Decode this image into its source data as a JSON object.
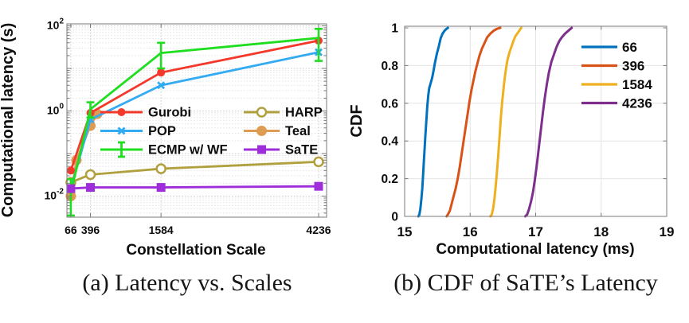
{
  "figure": {
    "captions": {
      "a": "(a) Latency vs. Scales",
      "b": "(b) CDF of SaTE’s Latency"
    }
  },
  "chart_data": [
    {
      "id": "latency-vs-scales",
      "type": "line",
      "title": "",
      "xlabel": "Constellation Scale",
      "ylabel": "Computational latency (s)",
      "x_axis": {
        "scale": "linear",
        "range": [
          0,
          4370
        ],
        "ticks": [
          66,
          396,
          1584,
          4236
        ]
      },
      "y_axis": {
        "scale": "log",
        "range": [
          0.0032,
          110
        ],
        "ticks": [
          {
            "base": "10",
            "exp": "2",
            "value": 100
          },
          {
            "base": "10",
            "exp": "0",
            "value": 1
          },
          {
            "base": "10",
            "exp": "-2",
            "value": 0.01
          }
        ]
      },
      "grid": {
        "style": "dotted",
        "minor": true
      },
      "legend": {
        "position": "inside-right",
        "columns": [
          [
            "Gurobi",
            "POP",
            "ECMP w/ WF"
          ],
          [
            "HARP",
            "Teal",
            "SaTE"
          ]
        ]
      },
      "series": [
        {
          "name": "HARP",
          "color": "#B1A03E",
          "marker": "circle-open",
          "marker_size": 5.5,
          "x": [
            66,
            396,
            1584,
            4236
          ],
          "y": [
            0.021,
            0.032,
            0.044,
            0.064
          ]
        },
        {
          "name": "Teal",
          "color": "#DE9C52",
          "marker": "circle-filled",
          "marker_size": 6.5,
          "x": [
            66,
            160,
            396,
            510
          ],
          "y": [
            0.01,
            0.07,
            0.45,
            0.85
          ]
        },
        {
          "name": "Gurobi",
          "color": "#F2392C",
          "marker": "circle-filled",
          "marker_size": 5,
          "x": [
            66,
            396,
            1584,
            4236
          ],
          "y": [
            0.04,
            0.9,
            8,
            45
          ]
        },
        {
          "name": "POP",
          "color": "#33ABF2",
          "marker": "x",
          "marker_size": 5,
          "x": [
            66,
            396,
            1584,
            4236
          ],
          "y": [
            0.015,
            0.63,
            4,
            24
          ]
        },
        {
          "name": "ECMP w/ WF",
          "color": "#1FDE20",
          "marker": "errorbar",
          "marker_size": 5,
          "x": [
            66,
            396,
            1584,
            4236
          ],
          "y": [
            0.012,
            1.1,
            23,
            52
          ],
          "err_low": [
            0.0035,
            0.7,
            10,
            15
          ],
          "err_high": [
            0.025,
            1.6,
            40,
            85
          ]
        },
        {
          "name": "SaTE",
          "color": "#9E2ED9",
          "marker": "square-filled",
          "marker_size": 5.5,
          "x": [
            66,
            396,
            1584,
            4236
          ],
          "y": [
            0.015,
            0.016,
            0.016,
            0.017
          ]
        }
      ]
    },
    {
      "id": "sate-cdf",
      "type": "line",
      "title": "",
      "xlabel": "Computational latency (ms)",
      "ylabel": "CDF",
      "x_axis": {
        "scale": "linear",
        "range": [
          15,
          19
        ],
        "ticks": [
          15,
          16,
          17,
          18,
          19
        ]
      },
      "y_axis": {
        "scale": "linear",
        "range": [
          0,
          1.01
        ],
        "ticks": [
          "0",
          "0.2",
          "0.4",
          "0.6",
          "0.8",
          "1"
        ]
      },
      "grid": {
        "style": "solid",
        "minor": false
      },
      "legend": {
        "position": "upper-right",
        "labels": [
          "66",
          "396",
          "1584",
          "4236"
        ]
      },
      "series": [
        {
          "name": "66",
          "color": "#0072BD",
          "points": [
            [
              15.21,
              0
            ],
            [
              15.225,
              0.01
            ],
            [
              15.24,
              0.04
            ],
            [
              15.255,
              0.09
            ],
            [
              15.27,
              0.15
            ],
            [
              15.28,
              0.21
            ],
            [
              15.29,
              0.27
            ],
            [
              15.3,
              0.33
            ],
            [
              15.315,
              0.42
            ],
            [
              15.33,
              0.5
            ],
            [
              15.345,
              0.58
            ],
            [
              15.36,
              0.64
            ],
            [
              15.375,
              0.68
            ],
            [
              15.4,
              0.71
            ],
            [
              15.42,
              0.735
            ],
            [
              15.44,
              0.77
            ],
            [
              15.46,
              0.81
            ],
            [
              15.49,
              0.86
            ],
            [
              15.52,
              0.9
            ],
            [
              15.55,
              0.945
            ],
            [
              15.58,
              0.97
            ],
            [
              15.61,
              0.985
            ],
            [
              15.64,
              0.995
            ],
            [
              15.66,
              1.0
            ]
          ]
        },
        {
          "name": "396",
          "color": "#D95319",
          "points": [
            [
              15.64,
              0
            ],
            [
              15.66,
              0.01
            ],
            [
              15.69,
              0.03
            ],
            [
              15.72,
              0.07
            ],
            [
              15.75,
              0.11
            ],
            [
              15.78,
              0.15
            ],
            [
              15.81,
              0.2
            ],
            [
              15.84,
              0.26
            ],
            [
              15.87,
              0.33
            ],
            [
              15.9,
              0.4
            ],
            [
              15.93,
              0.47
            ],
            [
              15.96,
              0.54
            ],
            [
              15.99,
              0.61
            ],
            [
              16.02,
              0.67
            ],
            [
              16.05,
              0.72
            ],
            [
              16.08,
              0.77
            ],
            [
              16.11,
              0.81
            ],
            [
              16.14,
              0.85
            ],
            [
              16.18,
              0.89
            ],
            [
              16.22,
              0.92
            ],
            [
              16.26,
              0.95
            ],
            [
              16.31,
              0.97
            ],
            [
              16.36,
              0.985
            ],
            [
              16.41,
              0.995
            ],
            [
              16.46,
              1.0
            ]
          ]
        },
        {
          "name": "1584",
          "color": "#EFB020",
          "points": [
            [
              16.31,
              0
            ],
            [
              16.33,
              0.01
            ],
            [
              16.35,
              0.04
            ],
            [
              16.37,
              0.09
            ],
            [
              16.39,
              0.16
            ],
            [
              16.41,
              0.24
            ],
            [
              16.43,
              0.33
            ],
            [
              16.45,
              0.43
            ],
            [
              16.47,
              0.53
            ],
            [
              16.49,
              0.61
            ],
            [
              16.51,
              0.68
            ],
            [
              16.53,
              0.74
            ],
            [
              16.55,
              0.79
            ],
            [
              16.57,
              0.83
            ],
            [
              16.6,
              0.87
            ],
            [
              16.63,
              0.9
            ],
            [
              16.66,
              0.93
            ],
            [
              16.69,
              0.955
            ],
            [
              16.72,
              0.97
            ],
            [
              16.75,
              0.985
            ],
            [
              16.78,
              1.0
            ]
          ]
        },
        {
          "name": "4236",
          "color": "#7E2F8E",
          "points": [
            [
              16.84,
              0
            ],
            [
              16.87,
              0.01
            ],
            [
              16.9,
              0.04
            ],
            [
              16.93,
              0.08
            ],
            [
              16.96,
              0.13
            ],
            [
              16.99,
              0.2
            ],
            [
              17.02,
              0.28
            ],
            [
              17.05,
              0.37
            ],
            [
              17.08,
              0.46
            ],
            [
              17.11,
              0.55
            ],
            [
              17.14,
              0.63
            ],
            [
              17.17,
              0.7
            ],
            [
              17.2,
              0.76
            ],
            [
              17.24,
              0.82
            ],
            [
              17.28,
              0.86
            ],
            [
              17.32,
              0.9
            ],
            [
              17.36,
              0.93
            ],
            [
              17.4,
              0.95
            ],
            [
              17.45,
              0.97
            ],
            [
              17.5,
              0.985
            ],
            [
              17.55,
              1.0
            ]
          ]
        }
      ]
    }
  ]
}
